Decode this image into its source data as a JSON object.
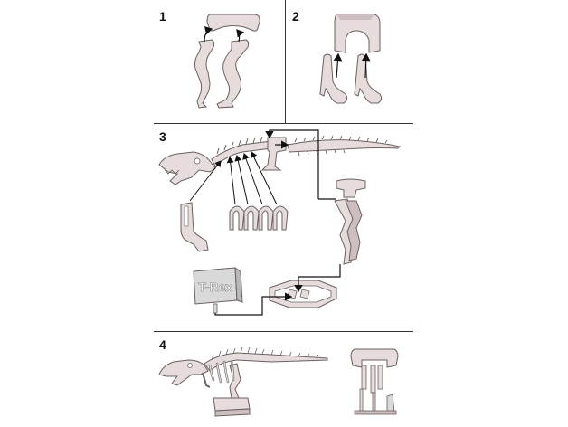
{
  "steps": [
    {
      "number": "1"
    },
    {
      "number": "2"
    },
    {
      "number": "3"
    },
    {
      "number": "4"
    }
  ],
  "sign_text": "T-Rex",
  "colors": {
    "part_fill": "#e6dcdc",
    "part_shade": "#cdbfbf",
    "outline": "#6b6060",
    "arrow": "#111111",
    "divider": "#333333",
    "sign_fill": "#d9d9d9"
  }
}
